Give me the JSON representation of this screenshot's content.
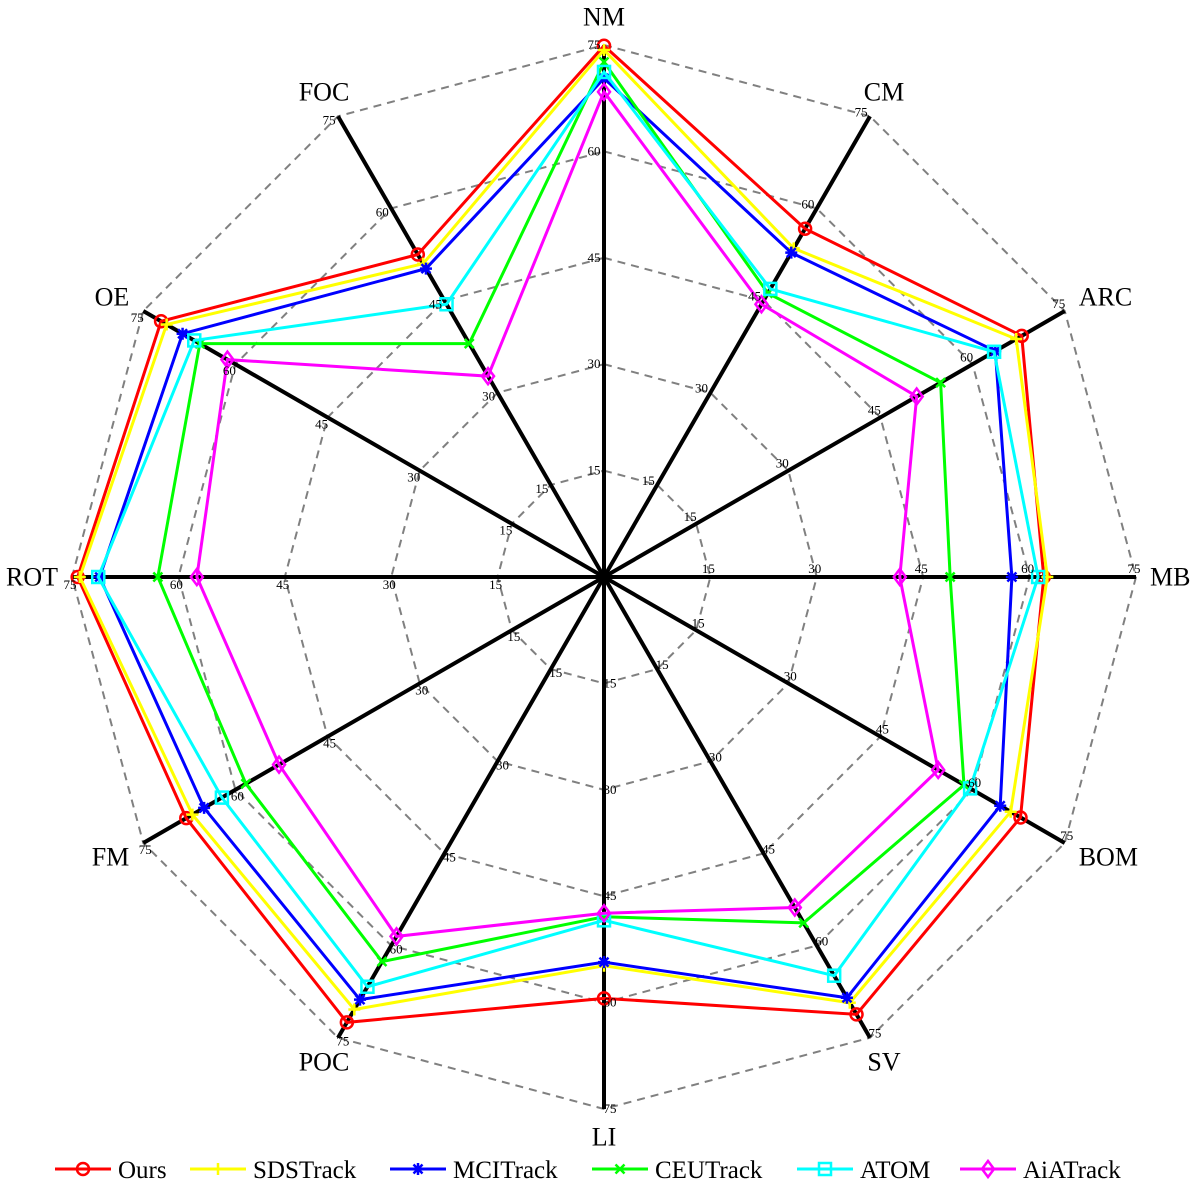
{
  "chart_data": {
    "type": "radar",
    "axes": [
      "NM",
      "CM",
      "ARC",
      "MB",
      "BOM",
      "SV",
      "LI",
      "POC",
      "FM",
      "ROT",
      "OE",
      "FOC"
    ],
    "rlim": [
      0,
      75
    ],
    "ticks": [
      15,
      30,
      45,
      60,
      75
    ],
    "grid": true,
    "legend_position": "bottom",
    "series": [
      {
        "name": "Ours",
        "color": "#ff0000",
        "marker": "circle",
        "values": [
          74.9,
          56.7,
          68.0,
          62.0,
          67.8,
          71.2,
          59.4,
          72.5,
          68.0,
          74.2,
          72.1,
          52.5
        ]
      },
      {
        "name": "SDSTrack",
        "color": "#ffff00",
        "marker": "plus",
        "values": [
          74.3,
          53.5,
          67.1,
          62.5,
          66.2,
          69.3,
          54.8,
          70.4,
          67.0,
          73.9,
          71.2,
          51.0
        ]
      },
      {
        "name": "MCITrack",
        "color": "#0000ff",
        "marker": "asterisk",
        "values": [
          70.3,
          52.8,
          63.7,
          57.5,
          64.5,
          68.5,
          54.3,
          68.8,
          65.1,
          71.1,
          68.6,
          50.2
        ]
      },
      {
        "name": "CEUTrack",
        "color": "#00ff00",
        "marker": "x",
        "values": [
          72.6,
          46.2,
          54.8,
          48.8,
          58.6,
          56.3,
          47.9,
          62.6,
          58.3,
          62.9,
          65.8,
          38.0
        ]
      },
      {
        "name": "ATOM",
        "color": "#00ffff",
        "marker": "square",
        "values": [
          71.2,
          46.9,
          63.5,
          61.2,
          59.6,
          64.9,
          48.4,
          66.7,
          62.2,
          71.3,
          66.7,
          44.4
        ]
      },
      {
        "name": "AiATrack",
        "color": "#ff00ff",
        "marker": "diamond",
        "values": [
          68.4,
          44.4,
          50.9,
          41.7,
          54.4,
          53.8,
          47.4,
          58.5,
          52.9,
          57.4,
          61.3,
          32.7
        ]
      }
    ]
  }
}
